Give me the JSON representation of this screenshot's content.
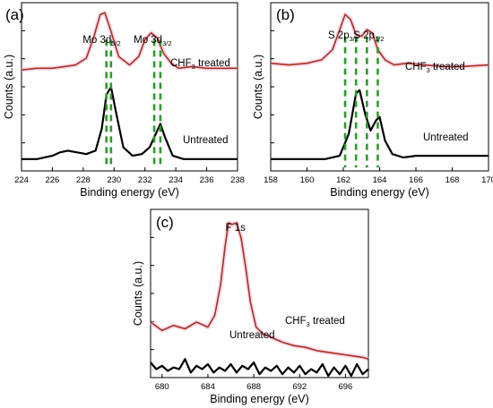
{
  "chart_data": [
    {
      "type": "line",
      "panel_label": "(a)",
      "xlabel": "Binding energy (eV)",
      "ylabel": "Counts (a.u.)",
      "xlim": [
        224,
        238
      ],
      "x_ticks": [
        224,
        226,
        228,
        230,
        232,
        234,
        236,
        238
      ],
      "annotations": [
        {
          "base": "Mo 3d",
          "sub": "5/2",
          "x": 229.2
        },
        {
          "base": "Mo 3d",
          "sub": "3/2",
          "x": 232.5
        }
      ],
      "series": [
        {
          "label_base": "CHF",
          "label_sub": "3",
          "label_rest": " treated",
          "color": "#a8321e",
          "x": [
            224,
            225,
            226,
            226.8,
            227.5,
            228.2,
            228.7,
            229.1,
            229.4,
            229.8,
            230.3,
            231.0,
            231.6,
            232.0,
            232.4,
            232.8,
            233.2,
            233.7,
            234.2,
            235,
            236,
            237,
            238
          ],
          "y": [
            0.6,
            0.61,
            0.61,
            0.62,
            0.63,
            0.67,
            0.8,
            0.93,
            0.94,
            0.83,
            0.68,
            0.63,
            0.68,
            0.78,
            0.82,
            0.79,
            0.7,
            0.64,
            0.61,
            0.62,
            0.61,
            0.61,
            0.61
          ]
        },
        {
          "label_base": "Untreated",
          "label_sub": "",
          "label_rest": "",
          "color": "#000000",
          "x": [
            224,
            225,
            226,
            226.5,
            227,
            227.6,
            228.2,
            228.8,
            229.2,
            229.5,
            229.8,
            230.1,
            230.6,
            231.2,
            231.8,
            232.3,
            232.7,
            233.0,
            233.3,
            233.8,
            234.5,
            235.5,
            236.5,
            238
          ],
          "y": [
            0.07,
            0.07,
            0.09,
            0.11,
            0.12,
            0.11,
            0.1,
            0.12,
            0.25,
            0.45,
            0.5,
            0.36,
            0.14,
            0.09,
            0.1,
            0.14,
            0.22,
            0.28,
            0.2,
            0.09,
            0.07,
            0.07,
            0.07,
            0.07
          ]
        }
      ],
      "guide_lines": [
        229.5,
        229.8,
        232.6,
        233.0
      ]
    },
    {
      "type": "line",
      "panel_label": "(b)",
      "xlabel": "Binding energy (eV)",
      "ylabel": "Counts (a.u.)",
      "xlim": [
        158,
        170
      ],
      "x_ticks": [
        158,
        160,
        162,
        164,
        166,
        168,
        170
      ],
      "annotations": [
        {
          "base": "S 2p",
          "sub": "3/2",
          "x": 162.0
        },
        {
          "base": "S 2p",
          "sub": "1/2",
          "x": 163.4
        }
      ],
      "series": [
        {
          "label_base": "CHF",
          "label_sub": "3",
          "label_rest": " treated",
          "color": "#a8321e",
          "x": [
            158,
            159,
            160,
            160.8,
            161.4,
            161.8,
            162.1,
            162.4,
            162.7,
            163.0,
            163.3,
            163.6,
            163.9,
            164.3,
            164.8,
            165.5,
            166.5,
            167.5,
            168.5,
            170
          ],
          "y": [
            0.64,
            0.63,
            0.64,
            0.66,
            0.72,
            0.84,
            0.93,
            0.9,
            0.81,
            0.8,
            0.84,
            0.82,
            0.72,
            0.66,
            0.63,
            0.64,
            0.63,
            0.62,
            0.62,
            0.63
          ]
        },
        {
          "label_base": "Untreated",
          "label_sub": "",
          "label_rest": "",
          "color": "#000000",
          "x": [
            158,
            159,
            160,
            161,
            161.8,
            162.3,
            162.7,
            162.9,
            163.2,
            163.5,
            163.8,
            164.0,
            164.3,
            164.7,
            165.3,
            166,
            167,
            168,
            169,
            170
          ],
          "y": [
            0.07,
            0.07,
            0.07,
            0.07,
            0.09,
            0.22,
            0.46,
            0.48,
            0.34,
            0.24,
            0.3,
            0.32,
            0.18,
            0.1,
            0.08,
            0.09,
            0.09,
            0.09,
            0.09,
            0.09
          ]
        }
      ],
      "guide_lines": [
        162.1,
        162.7,
        163.3,
        163.9
      ]
    },
    {
      "type": "line",
      "panel_label": "(c)",
      "xlabel": "Binding energy (eV)",
      "ylabel": "Counts (a.u.)",
      "xlim": [
        679,
        698
      ],
      "x_ticks": [
        680,
        684,
        688,
        692,
        696
      ],
      "annotations": [
        {
          "base": "F 1s",
          "sub": "",
          "x": 686.4
        }
      ],
      "series": [
        {
          "label_base": "CHF",
          "label_sub": "3",
          "label_rest": " treated",
          "color": "#a8321e",
          "x": [
            679,
            680,
            681,
            682,
            683,
            684,
            684.6,
            685.1,
            685.5,
            685.8,
            686.1,
            686.5,
            686.9,
            687.3,
            687.7,
            688.2,
            688.8,
            689.5,
            690.5,
            691.5,
            692.5,
            693.5,
            694.5,
            695.5,
            696.5,
            697.5,
            698
          ],
          "y": [
            0.33,
            0.28,
            0.31,
            0.29,
            0.33,
            0.3,
            0.37,
            0.55,
            0.78,
            0.92,
            0.91,
            0.92,
            0.83,
            0.65,
            0.45,
            0.3,
            0.26,
            0.24,
            0.21,
            0.19,
            0.18,
            0.16,
            0.15,
            0.14,
            0.13,
            0.12,
            0.11
          ]
        },
        {
          "label_base": "Untreated",
          "label_sub": "",
          "label_rest": "",
          "color": "#000000",
          "x": [
            679,
            679.5,
            680,
            680.5,
            681,
            681.5,
            682,
            682.5,
            683,
            683.5,
            684,
            684.5,
            685,
            685.5,
            686,
            686.5,
            687,
            687.5,
            688,
            688.5,
            689,
            689.5,
            690,
            690.5,
            691,
            691.5,
            692,
            692.5,
            693,
            693.5,
            694,
            694.5,
            695,
            695.5,
            696,
            696.5,
            697,
            697.5,
            698
          ],
          "y": [
            0.09,
            0.05,
            0.07,
            0.04,
            0.06,
            0.05,
            0.11,
            0.03,
            0.07,
            0.05,
            0.08,
            0.03,
            0.06,
            0.04,
            0.08,
            0.03,
            0.07,
            0.05,
            0.09,
            0.02,
            0.06,
            0.04,
            0.07,
            0.02,
            0.06,
            0.03,
            0.07,
            0.02,
            0.05,
            0.03,
            0.08,
            0.01,
            0.06,
            0.02,
            0.07,
            0.01,
            0.08,
            0.02,
            0.05
          ]
        }
      ],
      "guide_lines": []
    }
  ]
}
